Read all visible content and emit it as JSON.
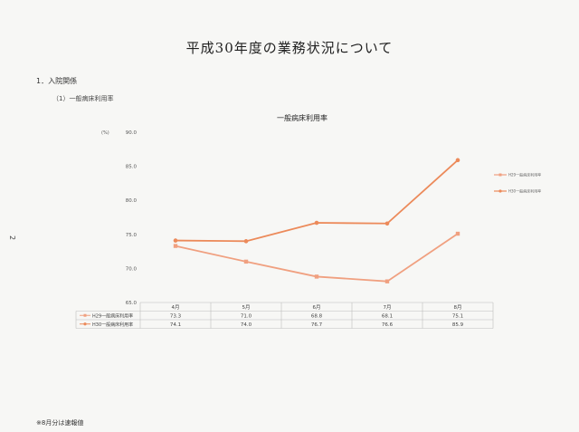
{
  "document": {
    "title": "平成30年度の業務状況について",
    "section": "1．入院関係",
    "subsection": "（1）一般病床利用率",
    "page_number": "2",
    "footnote": "※8月分は速報値"
  },
  "chart_data": {
    "type": "line",
    "title": "一般病床利用率",
    "unit": "(%)",
    "categories": [
      "4月",
      "5月",
      "6月",
      "7月",
      "8月"
    ],
    "ylim": [
      65.0,
      90.0
    ],
    "yticks": [
      "65.0",
      "70.0",
      "75.0",
      "80.0",
      "85.0",
      "90.0"
    ],
    "legend_position": "right",
    "series": [
      {
        "name": "H29一般病床利用率",
        "values": [
          73.3,
          71.0,
          68.8,
          68.1,
          75.1
        ],
        "display": [
          "73.3",
          "71.0",
          "68.8",
          "68.1",
          "75.1"
        ],
        "color": "#f0a080",
        "marker": "square"
      },
      {
        "name": "H30一般病床利用率",
        "values": [
          74.1,
          74.0,
          76.7,
          76.6,
          85.9
        ],
        "display": [
          "74.1",
          "74.0",
          "76.7",
          "76.6",
          "85.9"
        ],
        "color": "#ec8a5a",
        "marker": "circle"
      }
    ]
  }
}
